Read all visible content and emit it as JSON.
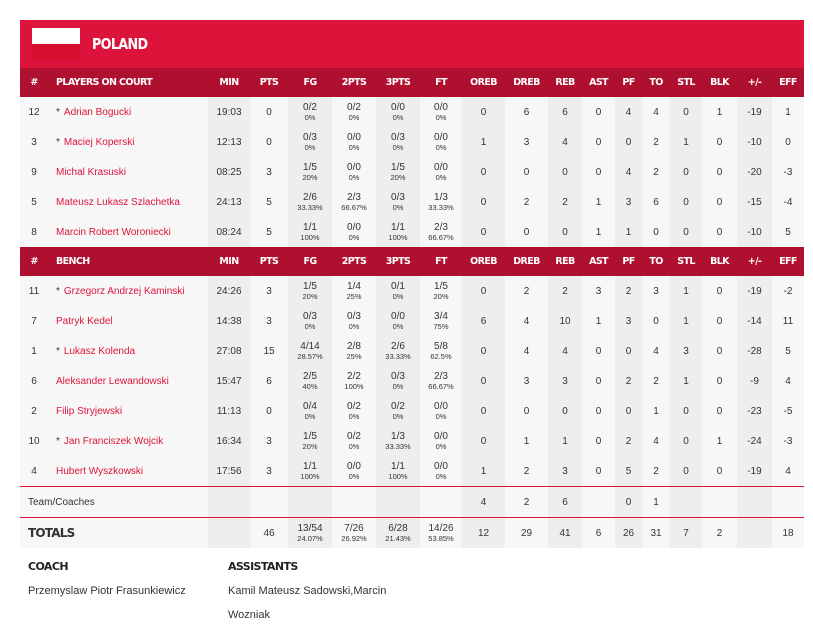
{
  "team": {
    "name": "POLAND",
    "flag_colors": [
      "#ffffff",
      "#d8102f"
    ]
  },
  "colors": {
    "title_bg": "#dc143c",
    "header_bg": "#b01030",
    "name_link": "#dc143c"
  },
  "columns": [
    "#",
    "MIN",
    "PTS",
    "FG",
    "2PTS",
    "3PTS",
    "FT",
    "OREB",
    "DREB",
    "REB",
    "AST",
    "PF",
    "TO",
    "STL",
    "BLK",
    "+/-",
    "EFF"
  ],
  "starters_header": "PLAYERS ON COURT",
  "bench_header": "BENCH",
  "starters": [
    {
      "no": "12",
      "star": true,
      "name": "Adrian Bogucki",
      "min": "19:03",
      "pts": "0",
      "fg": [
        "0/2",
        "0%"
      ],
      "p2": [
        "0/2",
        "0%"
      ],
      "p3": [
        "0/0",
        "0%"
      ],
      "ft": [
        "0/0",
        "0%"
      ],
      "oreb": "0",
      "dreb": "6",
      "reb": "6",
      "ast": "0",
      "pf": "4",
      "to": "4",
      "stl": "0",
      "blk": "1",
      "pm": "-19",
      "eff": "1"
    },
    {
      "no": "3",
      "star": true,
      "name": "Maciej Koperski",
      "min": "12:13",
      "pts": "0",
      "fg": [
        "0/3",
        "0%"
      ],
      "p2": [
        "0/0",
        "0%"
      ],
      "p3": [
        "0/3",
        "0%"
      ],
      "ft": [
        "0/0",
        "0%"
      ],
      "oreb": "1",
      "dreb": "3",
      "reb": "4",
      "ast": "0",
      "pf": "0",
      "to": "2",
      "stl": "1",
      "blk": "0",
      "pm": "-10",
      "eff": "0"
    },
    {
      "no": "9",
      "star": false,
      "name": "Michal Krasuski",
      "min": "08:25",
      "pts": "3",
      "fg": [
        "1/5",
        "20%"
      ],
      "p2": [
        "0/0",
        "0%"
      ],
      "p3": [
        "1/5",
        "20%"
      ],
      "ft": [
        "0/0",
        "0%"
      ],
      "oreb": "0",
      "dreb": "0",
      "reb": "0",
      "ast": "0",
      "pf": "4",
      "to": "2",
      "stl": "0",
      "blk": "0",
      "pm": "-20",
      "eff": "-3"
    },
    {
      "no": "5",
      "star": false,
      "name": "Mateusz Lukasz Szlachetka",
      "min": "24:13",
      "pts": "5",
      "fg": [
        "2/6",
        "33.33%"
      ],
      "p2": [
        "2/3",
        "66.67%"
      ],
      "p3": [
        "0/3",
        "0%"
      ],
      "ft": [
        "1/3",
        "33.33%"
      ],
      "oreb": "0",
      "dreb": "2",
      "reb": "2",
      "ast": "1",
      "pf": "3",
      "to": "6",
      "stl": "0",
      "blk": "0",
      "pm": "-15",
      "eff": "-4"
    },
    {
      "no": "8",
      "star": false,
      "name": "Marcin Robert Woroniecki",
      "min": "08:24",
      "pts": "5",
      "fg": [
        "1/1",
        "100%"
      ],
      "p2": [
        "0/0",
        "0%"
      ],
      "p3": [
        "1/1",
        "100%"
      ],
      "ft": [
        "2/3",
        "66.67%"
      ],
      "oreb": "0",
      "dreb": "0",
      "reb": "0",
      "ast": "1",
      "pf": "1",
      "to": "0",
      "stl": "0",
      "blk": "0",
      "pm": "-10",
      "eff": "5"
    }
  ],
  "bench": [
    {
      "no": "11",
      "star": true,
      "name": "Grzegorz Andrzej Kaminski",
      "min": "24:26",
      "pts": "3",
      "fg": [
        "1/5",
        "20%"
      ],
      "p2": [
        "1/4",
        "25%"
      ],
      "p3": [
        "0/1",
        "0%"
      ],
      "ft": [
        "1/5",
        "20%"
      ],
      "oreb": "0",
      "dreb": "2",
      "reb": "2",
      "ast": "3",
      "pf": "2",
      "to": "3",
      "stl": "1",
      "blk": "0",
      "pm": "-19",
      "eff": "-2"
    },
    {
      "no": "7",
      "star": false,
      "name": "Patryk Kedel",
      "min": "14:38",
      "pts": "3",
      "fg": [
        "0/3",
        "0%"
      ],
      "p2": [
        "0/3",
        "0%"
      ],
      "p3": [
        "0/0",
        "0%"
      ],
      "ft": [
        "3/4",
        "75%"
      ],
      "oreb": "6",
      "dreb": "4",
      "reb": "10",
      "ast": "1",
      "pf": "3",
      "to": "0",
      "stl": "1",
      "blk": "0",
      "pm": "-14",
      "eff": "11"
    },
    {
      "no": "1",
      "star": true,
      "name": "Lukasz Kolenda",
      "min": "27:08",
      "pts": "15",
      "fg": [
        "4/14",
        "28.57%"
      ],
      "p2": [
        "2/8",
        "25%"
      ],
      "p3": [
        "2/6",
        "33.33%"
      ],
      "ft": [
        "5/8",
        "62.5%"
      ],
      "oreb": "0",
      "dreb": "4",
      "reb": "4",
      "ast": "0",
      "pf": "0",
      "to": "4",
      "stl": "3",
      "blk": "0",
      "pm": "-28",
      "eff": "5"
    },
    {
      "no": "6",
      "star": false,
      "name": "Aleksander Lewandowski",
      "min": "15:47",
      "pts": "6",
      "fg": [
        "2/5",
        "40%"
      ],
      "p2": [
        "2/2",
        "100%"
      ],
      "p3": [
        "0/3",
        "0%"
      ],
      "ft": [
        "2/3",
        "66.67%"
      ],
      "oreb": "0",
      "dreb": "3",
      "reb": "3",
      "ast": "0",
      "pf": "2",
      "to": "2",
      "stl": "1",
      "blk": "0",
      "pm": "-9",
      "eff": "4"
    },
    {
      "no": "2",
      "star": false,
      "name": "Filip Stryjewski",
      "min": "11:13",
      "pts": "0",
      "fg": [
        "0/4",
        "0%"
      ],
      "p2": [
        "0/2",
        "0%"
      ],
      "p3": [
        "0/2",
        "0%"
      ],
      "ft": [
        "0/0",
        "0%"
      ],
      "oreb": "0",
      "dreb": "0",
      "reb": "0",
      "ast": "0",
      "pf": "0",
      "to": "1",
      "stl": "0",
      "blk": "0",
      "pm": "-23",
      "eff": "-5"
    },
    {
      "no": "10",
      "star": true,
      "name": "Jan Franciszek Wojcik",
      "min": "16:34",
      "pts": "3",
      "fg": [
        "1/5",
        "20%"
      ],
      "p2": [
        "0/2",
        "0%"
      ],
      "p3": [
        "1/3",
        "33.33%"
      ],
      "ft": [
        "0/0",
        "0%"
      ],
      "oreb": "0",
      "dreb": "1",
      "reb": "1",
      "ast": "0",
      "pf": "2",
      "to": "4",
      "stl": "0",
      "blk": "1",
      "pm": "-24",
      "eff": "-3"
    },
    {
      "no": "4",
      "star": false,
      "name": "Hubert Wyszkowski",
      "min": "17:56",
      "pts": "3",
      "fg": [
        "1/1",
        "100%"
      ],
      "p2": [
        "0/0",
        "0%"
      ],
      "p3": [
        "1/1",
        "100%"
      ],
      "ft": [
        "0/0",
        "0%"
      ],
      "oreb": "1",
      "dreb": "2",
      "reb": "3",
      "ast": "0",
      "pf": "5",
      "to": "2",
      "stl": "0",
      "blk": "0",
      "pm": "-19",
      "eff": "4"
    }
  ],
  "team_row": {
    "label": "Team/Coaches",
    "oreb": "4",
    "dreb": "2",
    "reb": "6",
    "pf": "0",
    "to": "1"
  },
  "totals": {
    "label": "TOTALS",
    "pts": "46",
    "fg": [
      "13/54",
      "24.07%"
    ],
    "p2": [
      "7/26",
      "26.92%"
    ],
    "p3": [
      "6/28",
      "21.43%"
    ],
    "ft": [
      "14/26",
      "53.85%"
    ],
    "oreb": "12",
    "dreb": "29",
    "reb": "41",
    "ast": "6",
    "pf": "26",
    "to": "31",
    "stl": "7",
    "blk": "2",
    "pm": "",
    "eff": "18"
  },
  "coach": {
    "label": "COACH",
    "name": "Przemyslaw Piotr Frasunkiewicz"
  },
  "assistants": {
    "label": "ASSISTANTS",
    "names": "Kamil Mateusz Sadowski,Marcin Wozniak"
  }
}
